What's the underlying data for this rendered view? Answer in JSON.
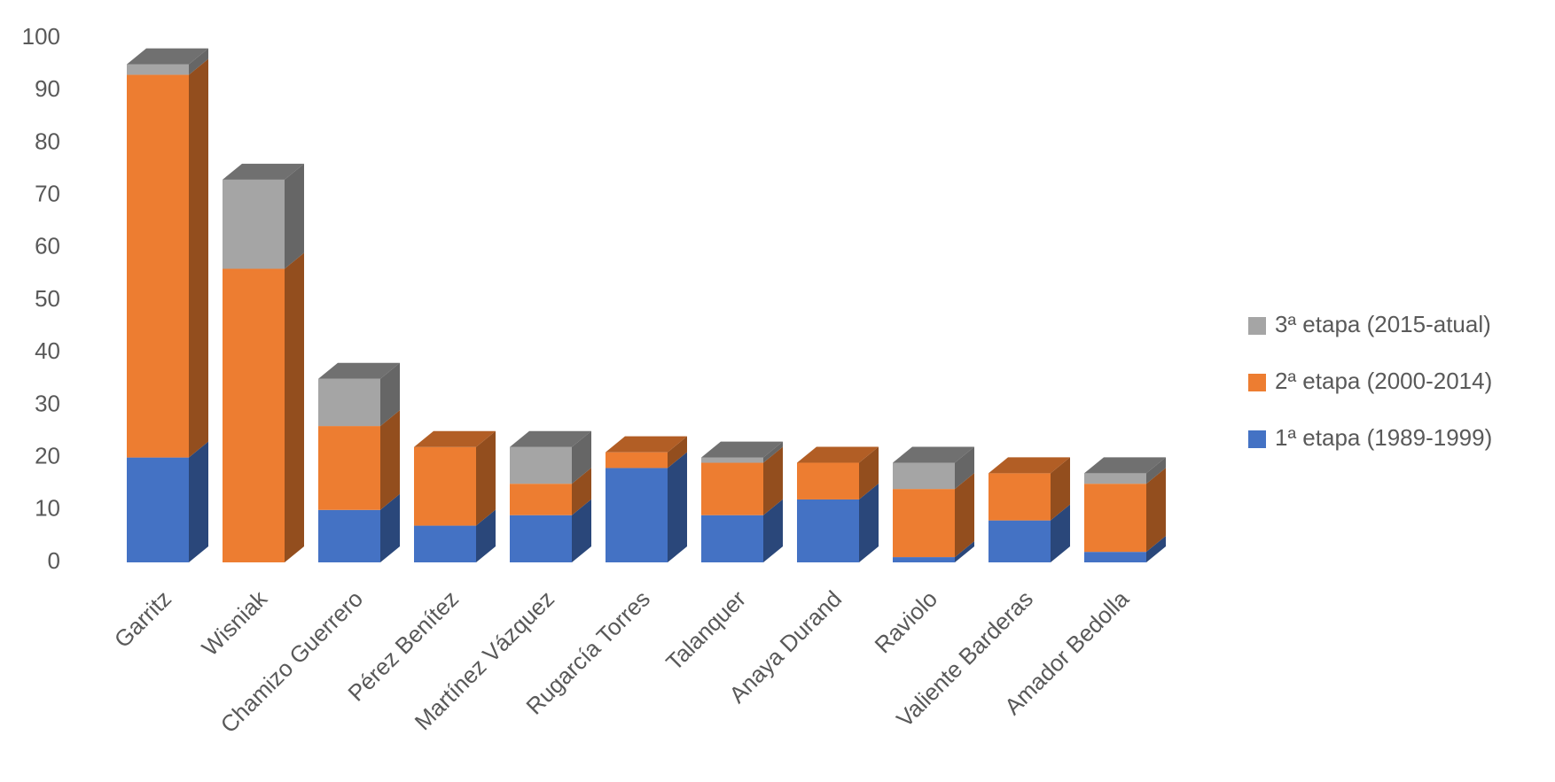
{
  "chart_data": {
    "type": "bar3d_stacked",
    "categories": [
      "Garritz",
      "Wisniak",
      "Chamizo Guerrero",
      "Pérez Benítez",
      "Martínez Vázquez",
      "Rugarcía Torres",
      "Talanquer",
      "Anaya Durand",
      "Raviolo",
      "Valiente Barderas",
      "Amador Bedolla"
    ],
    "series": [
      {
        "name": "1ª etapa (1989-1999)",
        "color": "#4472c4",
        "values": [
          20,
          0,
          10,
          7,
          9,
          18,
          9,
          12,
          1,
          8,
          2
        ]
      },
      {
        "name": "2ª etapa (2000-2014)",
        "color": "#ed7d31",
        "values": [
          73,
          56,
          16,
          15,
          6,
          3,
          10,
          7,
          13,
          9,
          13
        ]
      },
      {
        "name": "3ª etapa (2015-atual)",
        "color": "#a5a5a5",
        "values": [
          2,
          17,
          9,
          0,
          7,
          0,
          1,
          0,
          5,
          0,
          2
        ]
      }
    ],
    "ylim": [
      0,
      100
    ],
    "yticks": [
      0,
      10,
      20,
      30,
      40,
      50,
      60,
      70,
      80,
      90,
      100
    ],
    "grid": false,
    "legend": "right"
  }
}
